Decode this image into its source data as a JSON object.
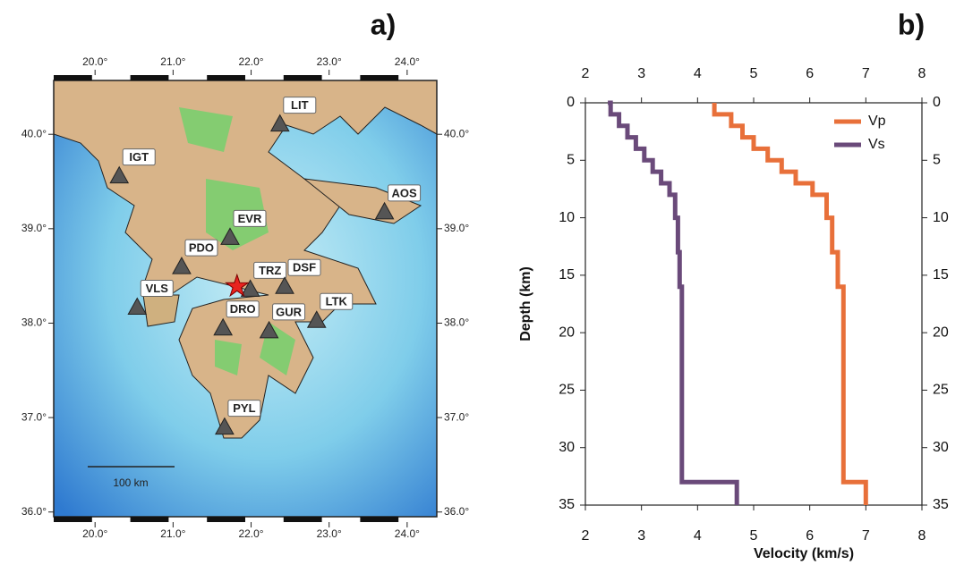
{
  "chart_data": [
    {
      "type": "map",
      "label": "a)",
      "xlim": [
        19.47,
        24.38
      ],
      "ylim": [
        35.95,
        40.57
      ],
      "xticks": [
        {
          "value": 20,
          "label": "20.0°"
        },
        {
          "value": 21,
          "label": "21.0°"
        },
        {
          "value": 22,
          "label": "22.0°"
        },
        {
          "value": 23,
          "label": "23.0°"
        },
        {
          "value": 24,
          "label": "24.0°"
        }
      ],
      "yticks": [
        {
          "value": 36,
          "label": "36.0°"
        },
        {
          "value": 37,
          "label": "37.0°"
        },
        {
          "value": 38,
          "label": "38.0°"
        },
        {
          "value": 39,
          "label": "39.0°"
        },
        {
          "value": 40,
          "label": "40.0°"
        }
      ],
      "stations": [
        {
          "name": "LIT",
          "lon": 22.37,
          "lat": 40.11
        },
        {
          "name": "IGT",
          "lon": 20.31,
          "lat": 39.56
        },
        {
          "name": "AOS",
          "lon": 23.71,
          "lat": 39.18
        },
        {
          "name": "EVR",
          "lon": 21.73,
          "lat": 38.91
        },
        {
          "name": "PDO",
          "lon": 21.11,
          "lat": 38.6
        },
        {
          "name": "TRZ",
          "lon": 21.99,
          "lat": 38.36
        },
        {
          "name": "DSF",
          "lon": 22.43,
          "lat": 38.39
        },
        {
          "name": "VLS",
          "lon": 20.54,
          "lat": 38.17
        },
        {
          "name": "DRO",
          "lon": 21.64,
          "lat": 37.95
        },
        {
          "name": "GUR",
          "lon": 22.23,
          "lat": 37.92
        },
        {
          "name": "LTK",
          "lon": 22.84,
          "lat": 38.03
        },
        {
          "name": "PYL",
          "lon": 21.66,
          "lat": 36.9
        }
      ],
      "epicenter": {
        "lon": 21.82,
        "lat": 38.39,
        "color": "#e8231f"
      },
      "scale_bar": "100 km"
    },
    {
      "type": "line",
      "label": "b)",
      "x_label": "Velocity (km/s)",
      "y_label": "Depth (km)",
      "xlim": [
        2,
        8
      ],
      "xticks": [
        2,
        3,
        4,
        5,
        6,
        7,
        8
      ],
      "ylim": [
        35,
        0
      ],
      "yticks": [
        0,
        5,
        10,
        15,
        20,
        25,
        30,
        35
      ],
      "legend": "upper right",
      "series": [
        {
          "name": "Vp",
          "color": "#e8703a",
          "x": [
            4.3,
            4.3,
            4.6,
            4.6,
            4.8,
            4.8,
            5.0,
            5.0,
            5.25,
            5.25,
            5.5,
            5.5,
            5.75,
            5.75,
            6.05,
            6.05,
            6.3,
            6.3,
            6.4,
            6.4,
            6.5,
            6.5,
            6.6,
            6.6,
            7.0,
            7.0
          ],
          "values": [
            0,
            1,
            1,
            2,
            2,
            3,
            3,
            4,
            4,
            5,
            5,
            6,
            6,
            7,
            7,
            8,
            8,
            10,
            10,
            13,
            13,
            16,
            16,
            33,
            33,
            35
          ]
        },
        {
          "name": "Vs",
          "color": "#6a4a7a",
          "x": [
            2.4,
            2.45,
            2.45,
            2.6,
            2.6,
            2.75,
            2.75,
            2.9,
            2.9,
            3.05,
            3.05,
            3.2,
            3.2,
            3.35,
            3.35,
            3.5,
            3.5,
            3.6,
            3.6,
            3.65,
            3.65,
            3.68,
            3.68,
            3.72,
            3.72,
            4.7,
            4.7
          ],
          "values": [
            0,
            0,
            1,
            1,
            2,
            2,
            3,
            3,
            4,
            4,
            5,
            5,
            6,
            6,
            7,
            7,
            8,
            8,
            10,
            10,
            13,
            13,
            16,
            16,
            33,
            33,
            35
          ]
        }
      ]
    }
  ]
}
